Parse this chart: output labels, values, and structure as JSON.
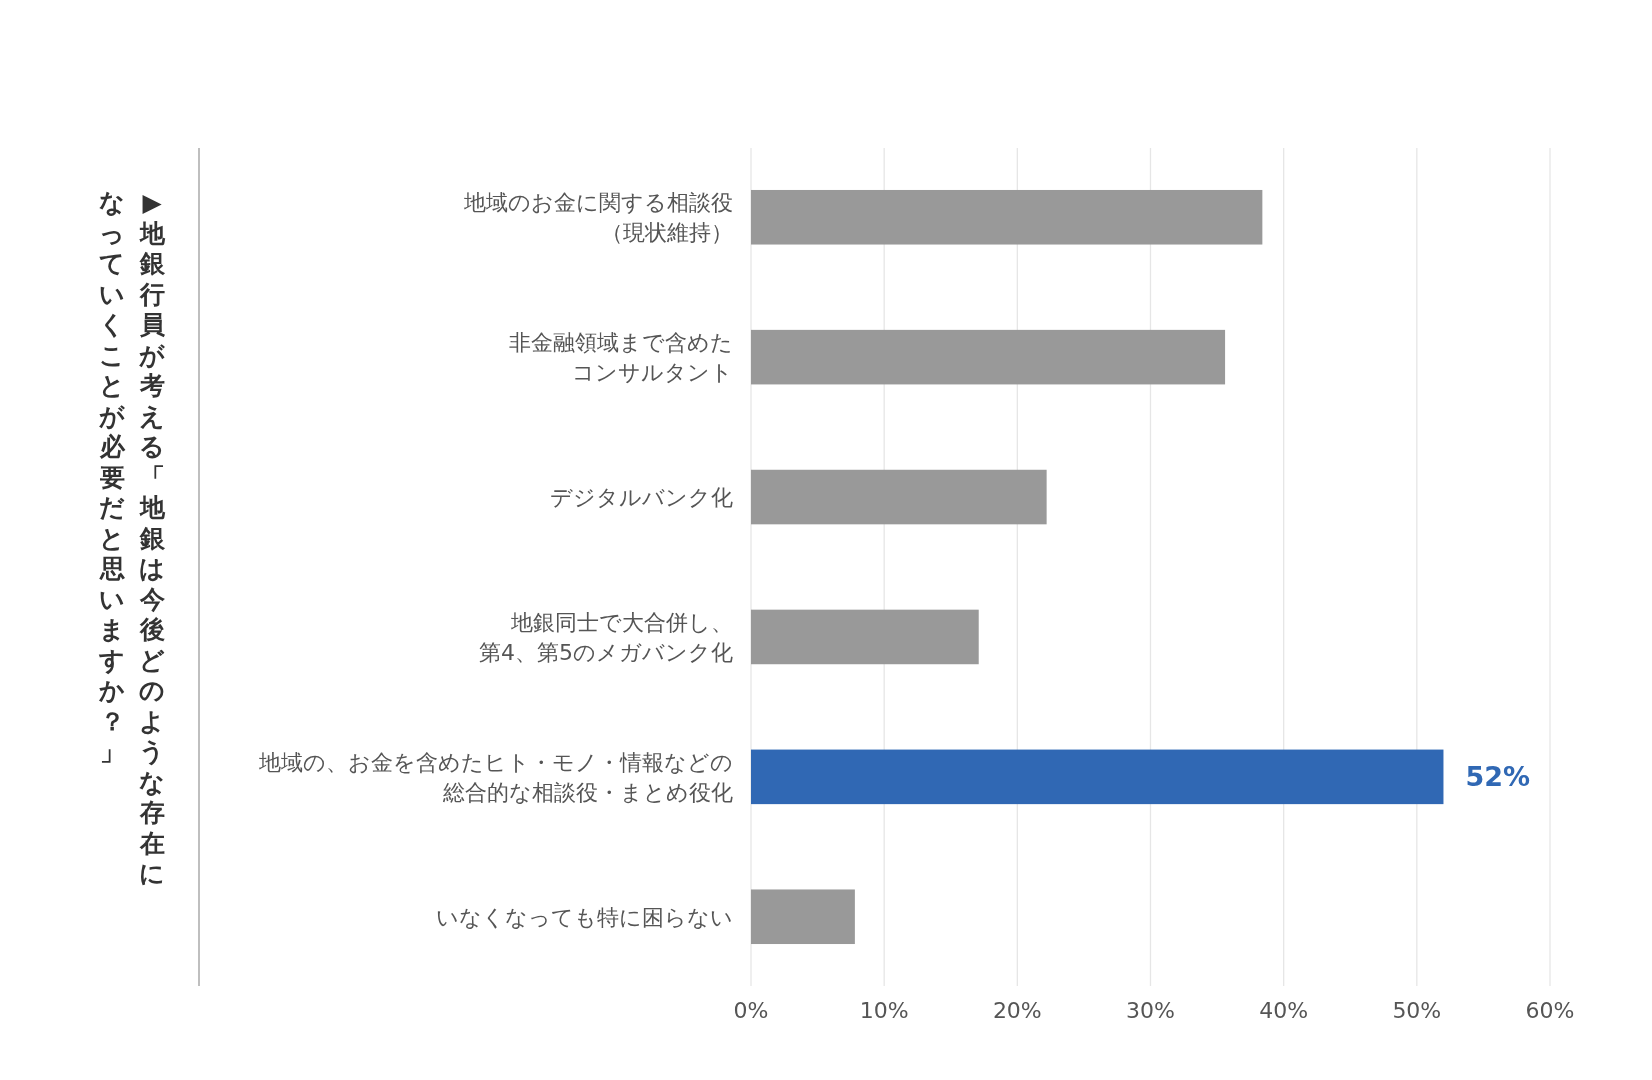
{
  "chart_data": {
    "type": "bar",
    "orientation": "horizontal",
    "title": "▶地銀行員が考える「地銀は今後どのような存在になっていくことが必要だと思いますか？」",
    "categories": [
      "地域のお金に関する相談役（現状維持）",
      "非金融領域まで含めたコンサルタント",
      "デジタルバンク化",
      "地銀同士で大合併し、第4、第5のメガバンク化",
      "地域の、お金を含めたヒト・モノ・情報などの総合的な相談役・まとめ役化",
      "いなくなっても特に困らない"
    ],
    "values": [
      38.4,
      35.6,
      22.2,
      17.1,
      52,
      7.8
    ],
    "colors": [
      "#999999",
      "#999999",
      "#999999",
      "#999999",
      "#3068b4",
      "#999999"
    ],
    "value_labels": [
      null,
      null,
      null,
      null,
      "52%",
      null
    ],
    "xlim": [
      0,
      60
    ],
    "xticks": [
      {
        "value": 0,
        "label": "0%"
      },
      {
        "value": 10,
        "label": "10%"
      },
      {
        "value": 20,
        "label": "20%"
      },
      {
        "value": 30,
        "label": "30%"
      },
      {
        "value": 40,
        "label": "40%"
      },
      {
        "value": 50,
        "label": "50%"
      },
      {
        "value": 60,
        "label": "60%"
      }
    ],
    "grid": "x"
  }
}
